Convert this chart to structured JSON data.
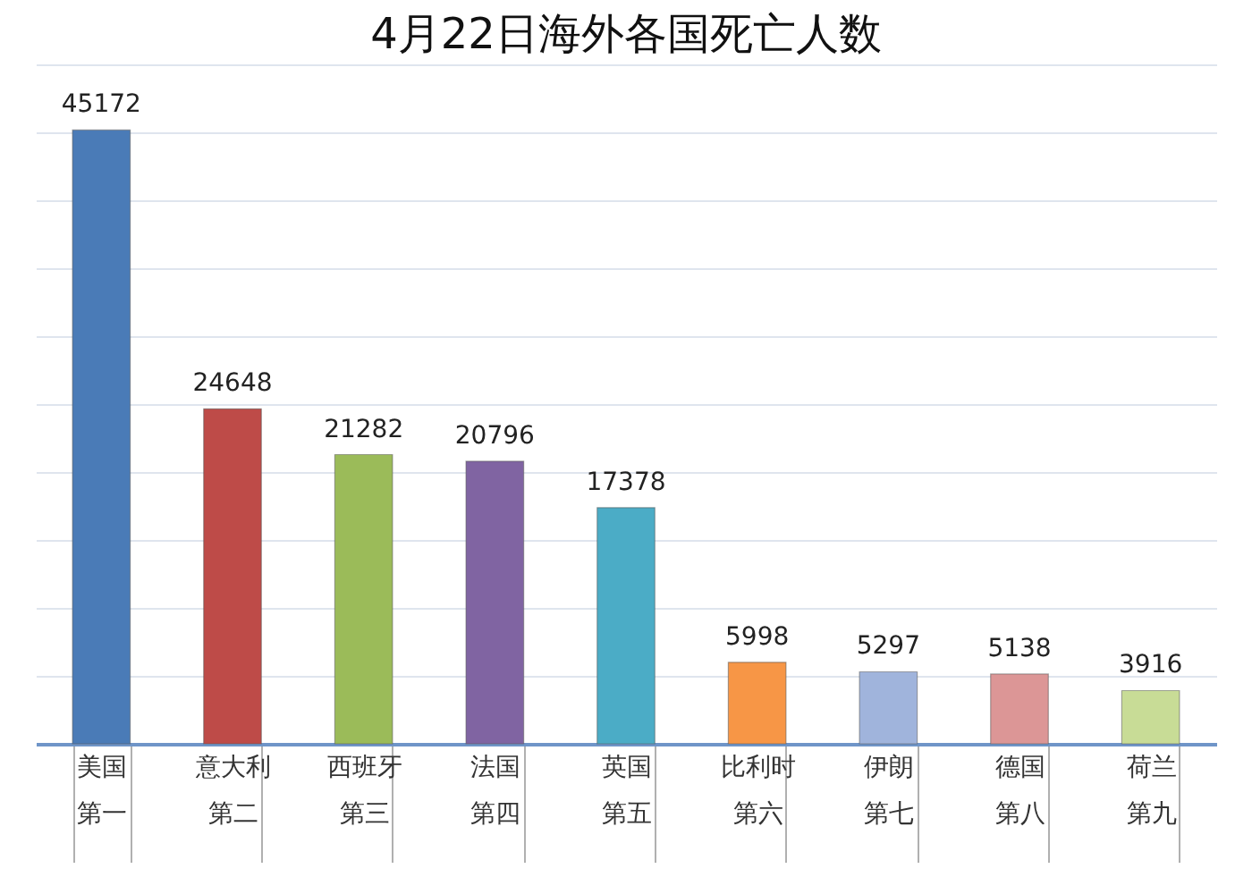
{
  "chart_data": {
    "type": "bar",
    "title": "4月22日海外各国死亡人数",
    "categories": [
      "美国第一",
      "意大利第二",
      "西班牙第三",
      "法国第四",
      "英国第五",
      "比利时第六",
      "伊朗第七",
      "德国第八",
      "荷兰第九"
    ],
    "values": [
      45172,
      24648,
      21282,
      20796,
      17378,
      5998,
      5297,
      5138,
      3916
    ],
    "colors": [
      "#4a7bb7",
      "#be4b48",
      "#9bbb59",
      "#8064a2",
      "#4bacc6",
      "#f79646",
      "#a0b4dc",
      "#dc9696",
      "#c8dc96"
    ],
    "ylim": [
      0,
      50000
    ],
    "grid": true,
    "data_labels": true
  }
}
